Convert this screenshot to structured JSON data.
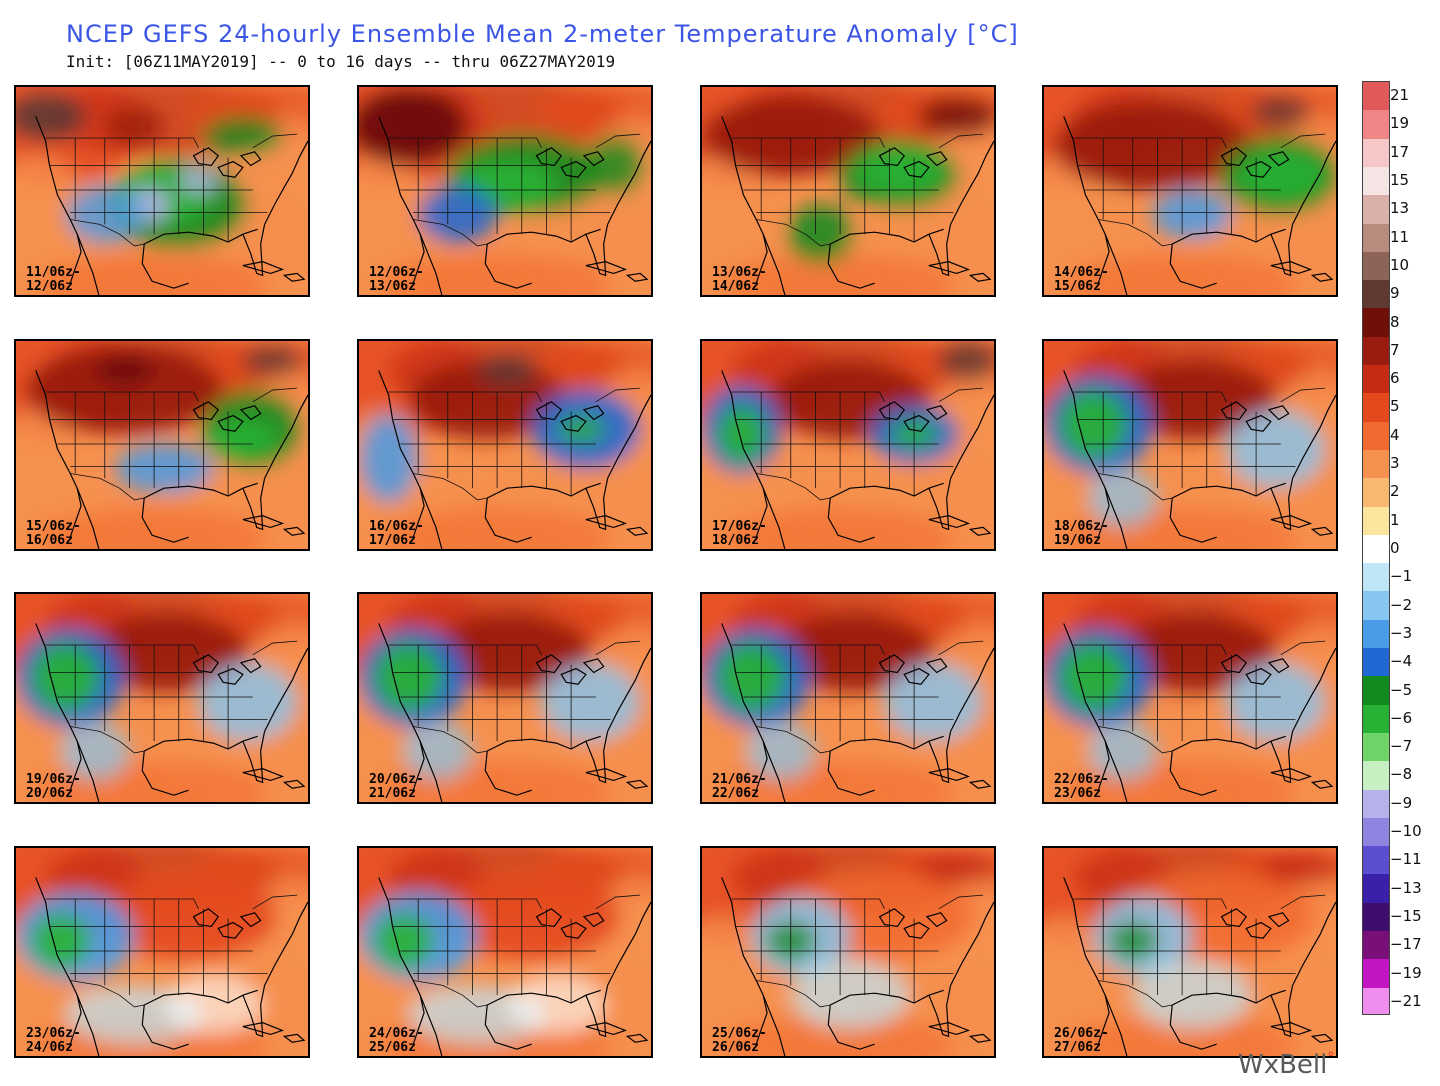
{
  "title": "NCEP GEFS 24-hourly Ensemble Mean 2-meter Temperature Anomaly [°C]",
  "subtitle": "Init: [06Z11MAY2019] -- 0 to 16 days -- thru 06Z27MAY2019",
  "panels": [
    {
      "label_start": "11/06z-",
      "label_end": "12/06z",
      "scheme": "coolEast"
    },
    {
      "label_start": "12/06z-",
      "label_end": "13/06z",
      "scheme": "coolCentral"
    },
    {
      "label_start": "13/06z-",
      "label_end": "14/06z",
      "scheme": "coolSouthEast"
    },
    {
      "label_start": "14/06z-",
      "label_end": "15/06z",
      "scheme": "coolEastCoast"
    },
    {
      "label_start": "15/06z-",
      "label_end": "16/06z",
      "scheme": "coolAppalachia"
    },
    {
      "label_start": "16/06z-",
      "label_end": "17/06z",
      "scheme": "coolBoth"
    },
    {
      "label_start": "17/06z-",
      "label_end": "18/06z",
      "scheme": "coolWestEast"
    },
    {
      "label_start": "18/06z-",
      "label_end": "19/06z",
      "scheme": "coolWest"
    },
    {
      "label_start": "19/06z-",
      "label_end": "20/06z",
      "scheme": "coolWest"
    },
    {
      "label_start": "20/06z-",
      "label_end": "21/06z",
      "scheme": "coolWest"
    },
    {
      "label_start": "21/06z-",
      "label_end": "22/06z",
      "scheme": "coolWest"
    },
    {
      "label_start": "22/06z-",
      "label_end": "23/06z",
      "scheme": "coolWest"
    },
    {
      "label_start": "23/06z-",
      "label_end": "24/06z",
      "scheme": "coolSouthWest"
    },
    {
      "label_start": "24/06z-",
      "label_end": "25/06z",
      "scheme": "coolSouthWest"
    },
    {
      "label_start": "25/06z-",
      "label_end": "26/06z",
      "scheme": "weakCool"
    },
    {
      "label_start": "26/06z-",
      "label_end": "27/06z",
      "scheme": "weakCool"
    }
  ],
  "legend": {
    "levels": [
      {
        "label": "21",
        "color": "#e05a5a"
      },
      {
        "label": "19",
        "color": "#ef8585"
      },
      {
        "label": "17",
        "color": "#f7c6c6"
      },
      {
        "label": "15",
        "color": "#f4e4e4"
      },
      {
        "label": "13",
        "color": "#d9b1a8"
      },
      {
        "label": "11",
        "color": "#b98a7e"
      },
      {
        "label": "10",
        "color": "#8f6458"
      },
      {
        "label": "9",
        "color": "#5e3a33"
      },
      {
        "label": "8",
        "color": "#6e0f0a"
      },
      {
        "label": "7",
        "color": "#9a1c10"
      },
      {
        "label": "6",
        "color": "#c42c14"
      },
      {
        "label": "5",
        "color": "#e4491d"
      },
      {
        "label": "4",
        "color": "#f26a2f"
      },
      {
        "label": "3",
        "color": "#f6904e"
      },
      {
        "label": "2",
        "color": "#f9b772"
      },
      {
        "label": "1",
        "color": "#fce59c"
      },
      {
        "label": "0",
        "color": "#ffffff"
      },
      {
        "label": "−1",
        "color": "#bfe6f7"
      },
      {
        "label": "−2",
        "color": "#86c6f0"
      },
      {
        "label": "−3",
        "color": "#4b9be6"
      },
      {
        "label": "−4",
        "color": "#1f67d3"
      },
      {
        "label": "−5",
        "color": "#138a1e"
      },
      {
        "label": "−6",
        "color": "#28b233"
      },
      {
        "label": "−7",
        "color": "#6fd46a"
      },
      {
        "label": "−8",
        "color": "#c8efc1"
      },
      {
        "label": "−9",
        "color": "#b7b2ec"
      },
      {
        "label": "−10",
        "color": "#8f85e0"
      },
      {
        "label": "−11",
        "color": "#5c4fcf"
      },
      {
        "label": "−13",
        "color": "#3a1fa8"
      },
      {
        "label": "−15",
        "color": "#3e0d6e"
      },
      {
        "label": "−17",
        "color": "#7a0f7a"
      },
      {
        "label": "−19",
        "color": "#c214c2"
      },
      {
        "label": "−21",
        "color": "#f08ef0"
      }
    ]
  },
  "logo": {
    "text": "WxBell",
    "dot": "°"
  }
}
